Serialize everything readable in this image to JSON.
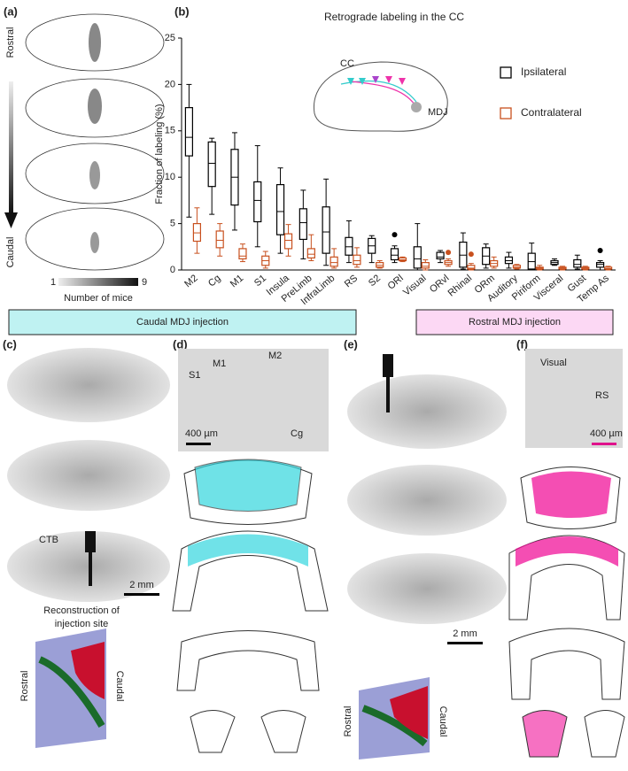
{
  "chart_data": {
    "type": "box",
    "title": "Retrograde labeling in the CC",
    "y_label": "Fraction of labeling (%)",
    "annotations": [
      "CC",
      "MDJ"
    ],
    "categories": [
      "M2",
      "Cg",
      "M1",
      "S1",
      "Insula",
      "PreLimb",
      "InfraLimb",
      "RS",
      "S2",
      "ORl",
      "Visual",
      "ORvl",
      "Rhinal",
      "ORm",
      "Auditory",
      "Piriform",
      "Visceral",
      "Gust",
      "Temp As"
    ],
    "ylim": [
      0,
      25
    ],
    "yticks": [
      0,
      5,
      10,
      15,
      20,
      25
    ],
    "grid": false,
    "legend": "right",
    "series": [
      {
        "name": "Ipsilateral",
        "color": "#000000",
        "values": [
          {
            "whislo": 5.7,
            "q1": 12.3,
            "med": 14.3,
            "q3": 17.5,
            "whishi": 20
          },
          {
            "whislo": 6,
            "q1": 9,
            "med": 11.5,
            "q3": 13.8,
            "whishi": 14.2
          },
          {
            "whislo": 4.3,
            "q1": 7,
            "med": 10,
            "q3": 13,
            "whishi": 14.8
          },
          {
            "whislo": 2.5,
            "q1": 5.2,
            "med": 7.5,
            "q3": 9.5,
            "whishi": 13.4
          },
          {
            "whislo": 1.8,
            "q1": 3.8,
            "med": 6.3,
            "q3": 9.2,
            "whishi": 11
          },
          {
            "whislo": 1.2,
            "q1": 3.3,
            "med": 5.1,
            "q3": 6.6,
            "whishi": 8.6
          },
          {
            "whislo": 0.5,
            "q1": 1.8,
            "med": 4.1,
            "q3": 6.8,
            "whishi": 9.8
          },
          {
            "whislo": 0.8,
            "q1": 1.6,
            "med": 2.5,
            "q3": 3.5,
            "whishi": 5.3
          },
          {
            "whislo": 0.8,
            "q1": 1.8,
            "med": 2.6,
            "q3": 3.4,
            "whishi": 3.7
          },
          {
            "whislo": 0.8,
            "q1": 1.1,
            "med": 1.6,
            "q3": 2.3,
            "whishi": 2.6,
            "fliers": [
              3.8
            ]
          },
          {
            "whislo": 0,
            "q1": 0.2,
            "med": 1.2,
            "q3": 2.5,
            "whishi": 5
          },
          {
            "whislo": 0.8,
            "q1": 1.2,
            "med": 1.4,
            "q3": 1.9,
            "whishi": 2.1
          },
          {
            "whislo": 0.1,
            "q1": 0.3,
            "med": 1.6,
            "q3": 3,
            "whishi": 4
          },
          {
            "whislo": 0.2,
            "q1": 0.6,
            "med": 1.5,
            "q3": 2.4,
            "whishi": 2.8
          },
          {
            "whislo": 0.2,
            "q1": 0.7,
            "med": 1,
            "q3": 1.4,
            "whishi": 1.9
          },
          {
            "whislo": 0,
            "q1": 0.1,
            "med": 0.9,
            "q3": 1.8,
            "whishi": 2.9
          },
          {
            "whislo": 0.5,
            "q1": 0.6,
            "med": 0.8,
            "q3": 1,
            "whishi": 1.2
          },
          {
            "whislo": 0.1,
            "q1": 0.3,
            "med": 0.6,
            "q3": 1.1,
            "whishi": 1.6
          },
          {
            "whislo": 0,
            "q1": 0.3,
            "med": 0.6,
            "q3": 0.8,
            "whishi": 1,
            "fliers": [
              2.1
            ]
          }
        ]
      },
      {
        "name": "Contralateral",
        "color": "#c8501e",
        "values": [
          {
            "whislo": 1.8,
            "q1": 3.1,
            "med": 4,
            "q3": 5,
            "whishi": 6.7
          },
          {
            "whislo": 1.5,
            "q1": 2.4,
            "med": 3.2,
            "q3": 4.2,
            "whishi": 5
          },
          {
            "whislo": 0.9,
            "q1": 1.2,
            "med": 1.5,
            "q3": 2.3,
            "whishi": 2.8
          },
          {
            "whislo": 0.2,
            "q1": 0.5,
            "med": 1,
            "q3": 1.5,
            "whishi": 2
          },
          {
            "whislo": 1.5,
            "q1": 2.3,
            "med": 3.2,
            "q3": 3.9,
            "whishi": 4.9
          },
          {
            "whislo": 1,
            "q1": 1.3,
            "med": 1.7,
            "q3": 2.3,
            "whishi": 3.8
          },
          {
            "whislo": 0.2,
            "q1": 0.4,
            "med": 0.8,
            "q3": 1.4,
            "whishi": 2.3
          },
          {
            "whislo": 0.3,
            "q1": 0.6,
            "med": 1,
            "q3": 1.6,
            "whishi": 2.4
          },
          {
            "whislo": 0.2,
            "q1": 0.3,
            "med": 0.5,
            "q3": 0.8,
            "whishi": 1
          },
          {
            "whislo": 0.9,
            "q1": 1,
            "med": 1.1,
            "q3": 1.3,
            "whishi": 1.4
          },
          {
            "whislo": 0,
            "q1": 0.2,
            "med": 0.4,
            "q3": 0.8,
            "whishi": 1.1
          },
          {
            "whislo": 0.4,
            "q1": 0.6,
            "med": 0.8,
            "q3": 1,
            "whishi": 1.2,
            "fliers": [
              1.9
            ]
          },
          {
            "whislo": 0,
            "q1": 0.1,
            "med": 0.2,
            "q3": 0.5,
            "whishi": 0.7,
            "fliers": [
              1.7
            ]
          },
          {
            "whislo": 0.2,
            "q1": 0.4,
            "med": 0.7,
            "q3": 1,
            "whishi": 1.4
          },
          {
            "whislo": 0.1,
            "q1": 0.2,
            "med": 0.3,
            "q3": 0.5,
            "whishi": 0.6
          },
          {
            "whislo": 0,
            "q1": 0.1,
            "med": 0.2,
            "q3": 0.3,
            "whishi": 0.5
          },
          {
            "whislo": 0,
            "q1": 0.1,
            "med": 0.2,
            "q3": 0.3,
            "whishi": 0.4
          },
          {
            "whislo": 0,
            "q1": 0.1,
            "med": 0.2,
            "q3": 0.3,
            "whishi": 0.4
          },
          {
            "whislo": 0,
            "q1": 0.1,
            "med": 0.15,
            "q3": 0.3,
            "whishi": 0.4
          }
        ]
      }
    ]
  },
  "panels": {
    "a": {
      "label": "(a)",
      "top": "Rostral",
      "bottom": "Caudal",
      "scale_min": "1",
      "scale_max": "9",
      "scale_label": "Number of mice"
    },
    "b": {
      "label": "(b)"
    },
    "caudal_header": "Caudal MDJ injection",
    "rostral_header": "Rostral MDJ injection",
    "c": {
      "label": "(c)",
      "tracer": "CTB",
      "scale": "2 mm",
      "recon_1": "Reconstruction of",
      "recon_2": "injection site",
      "left": "Rostral",
      "right": "Caudal"
    },
    "d": {
      "label": "(d)",
      "regions": [
        "S1",
        "M1",
        "M2",
        "Cg"
      ],
      "scale": "400 µm"
    },
    "e": {
      "label": "(e)",
      "scale": "2 mm",
      "left": "Rostral",
      "right": "Caudal"
    },
    "f": {
      "label": "(f)",
      "regions": [
        "Visual",
        "RS"
      ],
      "scale": "400 µm"
    }
  }
}
